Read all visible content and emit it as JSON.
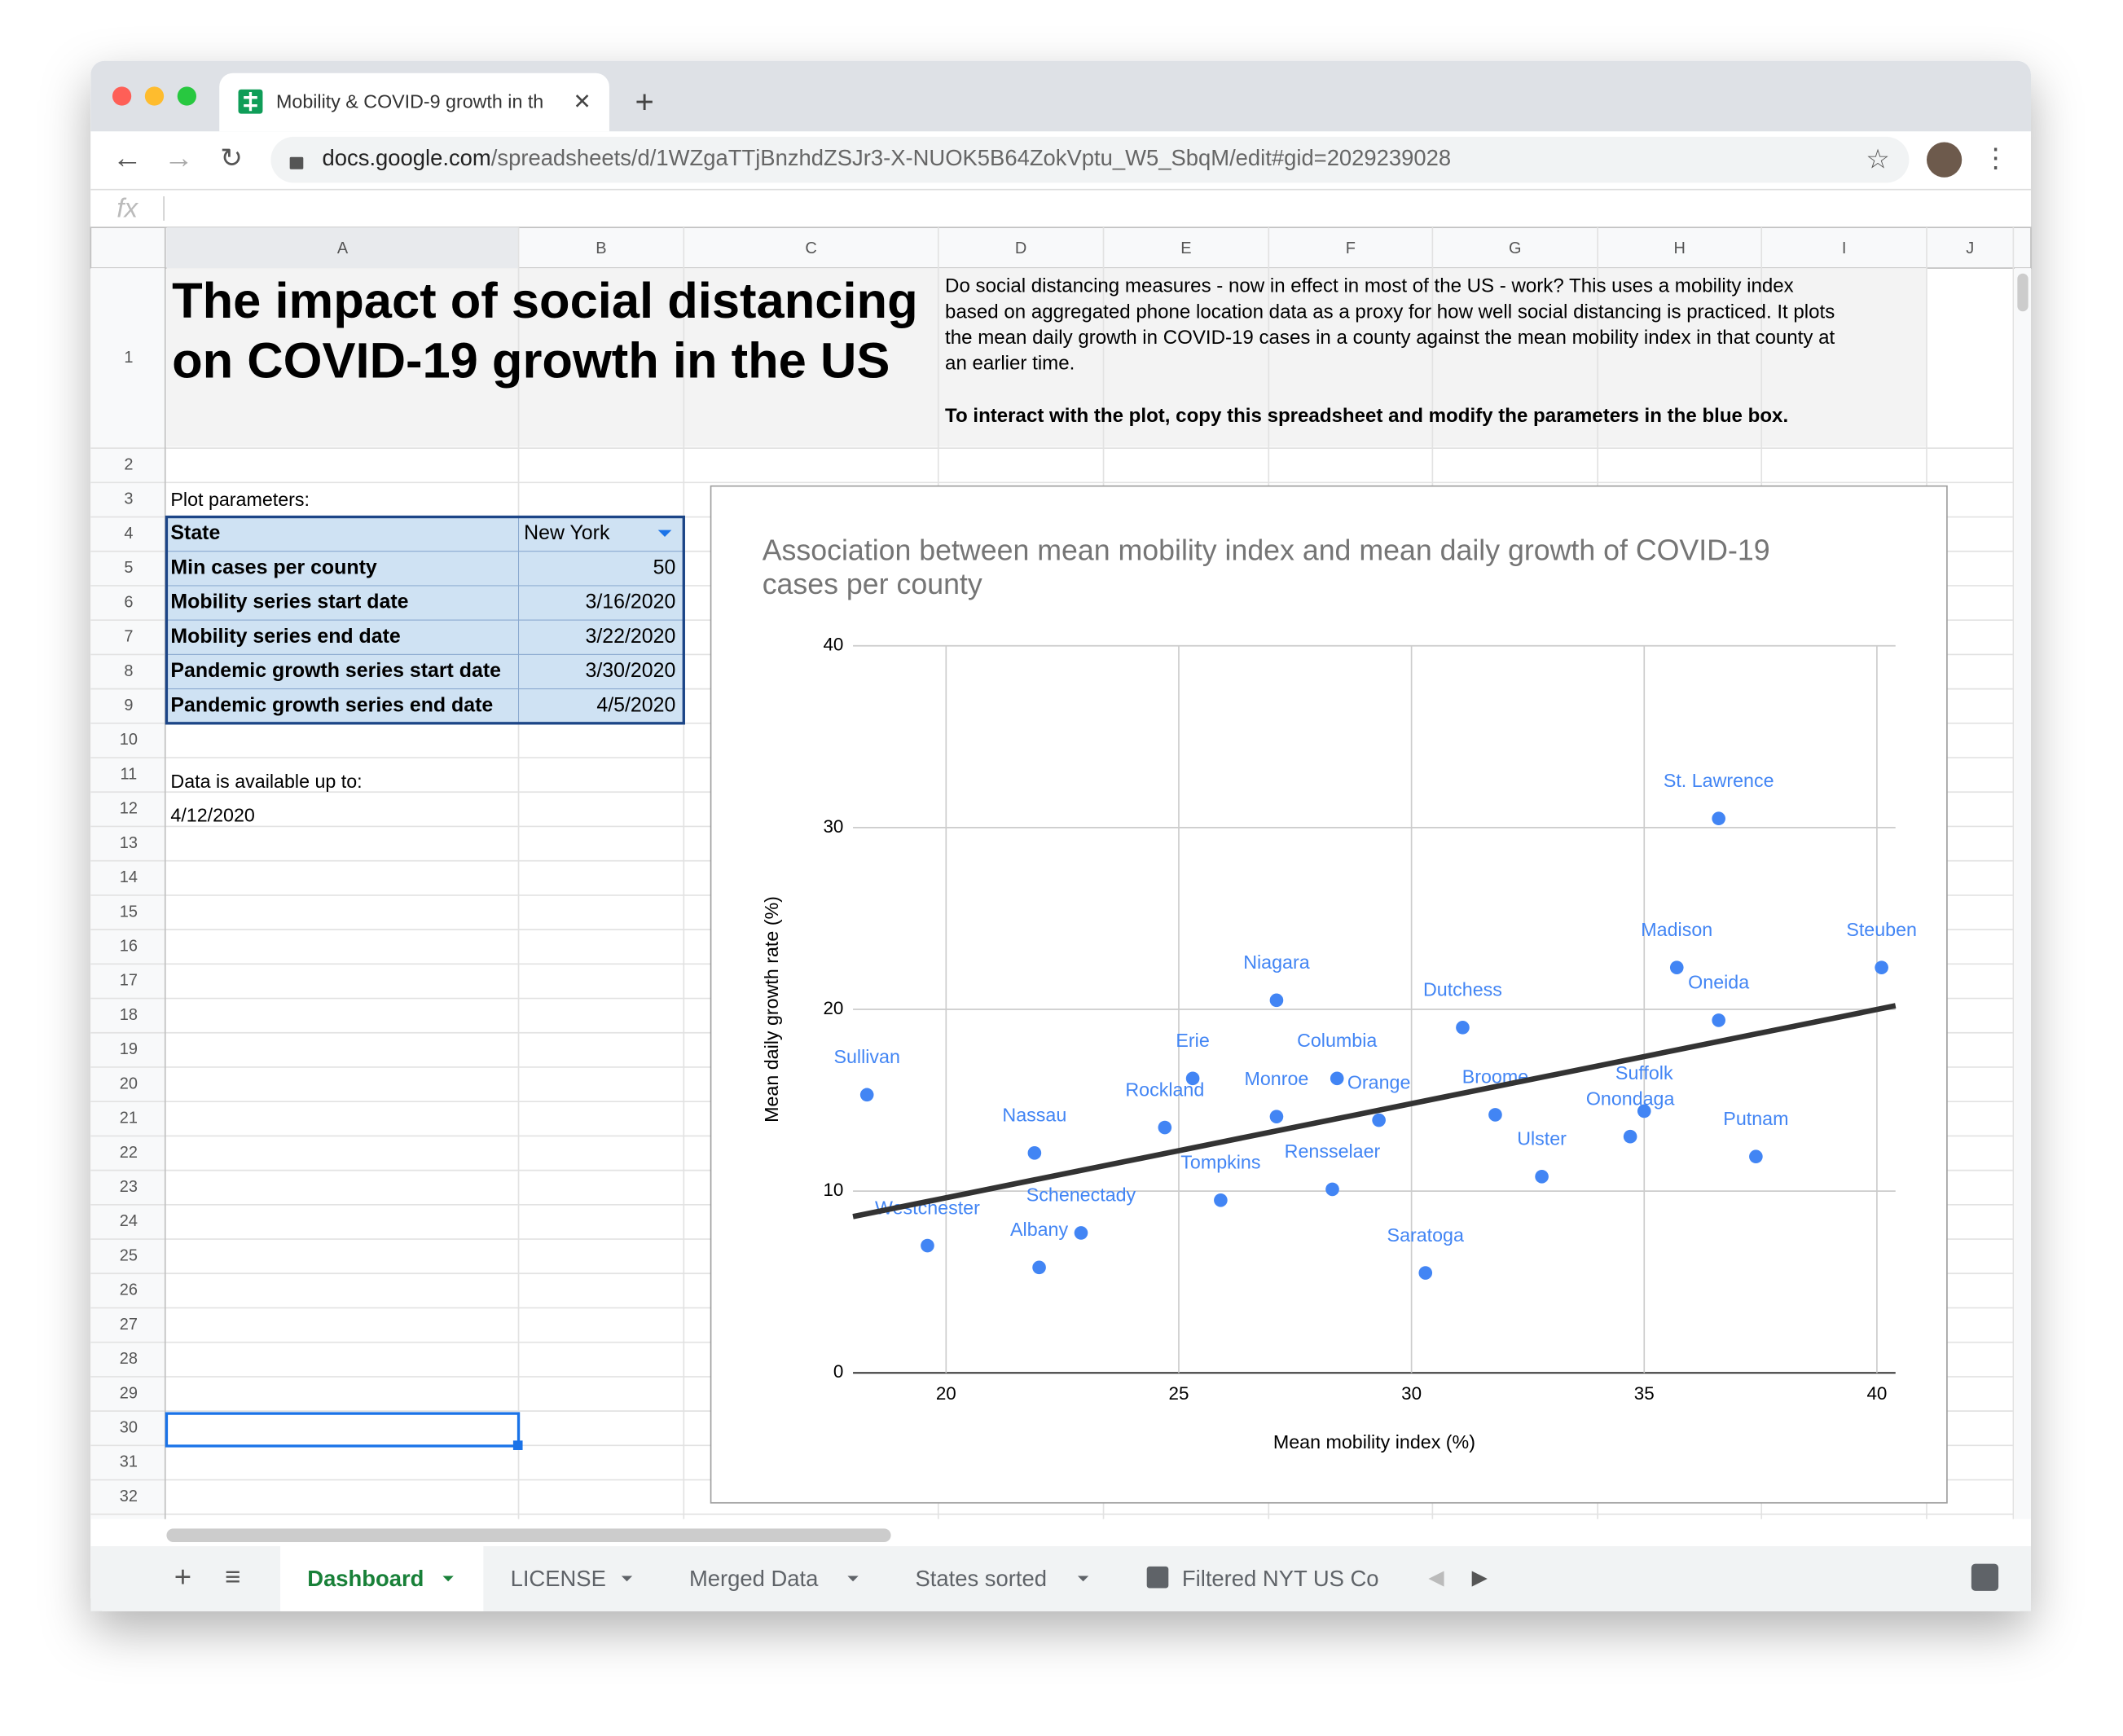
{
  "browser": {
    "tab_title": "Mobility & COVID-9 growth in th",
    "url_host": "docs.google.com",
    "url_path": "/spreadsheets/d/1WZgaTTjBnzhdZSJr3-X-NUOK5B64ZokVptu_W5_SbqM/edit#gid=2029239028"
  },
  "formula_bar": {
    "label": "fx"
  },
  "sheet": {
    "columns": [
      "A",
      "B",
      "C",
      "D",
      "E",
      "F",
      "G",
      "H",
      "I",
      "J"
    ],
    "rows": [
      "1",
      "2",
      "3",
      "4",
      "5",
      "6",
      "7",
      "8",
      "9",
      "10",
      "11",
      "12",
      "13",
      "14",
      "15",
      "16",
      "17",
      "18",
      "19",
      "20",
      "21",
      "22",
      "23",
      "24",
      "25",
      "26",
      "27",
      "28",
      "29",
      "30",
      "31",
      "32"
    ],
    "title": [
      "The impact of social distancing",
      "on COVID-19 growth in the US"
    ],
    "description": [
      "Do social distancing measures - now in effect in most of the US - work? This uses a mobility index",
      "based on aggregated phone location data as a proxy for how well social distancing is practiced. It plots",
      "the mean daily growth in COVID-19 cases in a county against the mean mobility index in that county at",
      "an earlier time."
    ],
    "instruction": "To interact with the plot, copy this spreadsheet and modify the parameters in the blue box.",
    "params_label": "Plot parameters:",
    "params": [
      [
        "State",
        "New York"
      ],
      [
        "Min cases per county",
        "50"
      ],
      [
        "Mobility series start date",
        "3/16/2020"
      ],
      [
        "Mobility series end date",
        "3/22/2020"
      ],
      [
        "Pandemic growth series start date",
        "3/30/2020"
      ],
      [
        "Pandemic growth series end date",
        "4/5/2020"
      ]
    ],
    "available_label": "Data is available up to:",
    "available_date": "4/12/2020"
  },
  "sheet_tabs": [
    "Dashboard",
    "LICENSE",
    "Merged Data",
    "States sorted",
    "Filtered NYT US Co"
  ],
  "chart_data": {
    "type": "scatter",
    "title": [
      "Association between mean mobility index and mean daily growth of COVID-19",
      "cases per county"
    ],
    "x_label": "Mean mobility index (%)",
    "y_label": "Mean daily growth rate (%)",
    "xlim": [
      18,
      40.4
    ],
    "ylim": [
      0,
      40
    ],
    "xticks": [
      20,
      25,
      30,
      35,
      40
    ],
    "yticks": [
      0,
      10,
      20,
      30,
      40
    ],
    "grid": true,
    "series": [
      {
        "color": "#4285f4",
        "labels": [
          "St. Lawrence",
          "Madison",
          "Steuben",
          "Oneida",
          "Niagara",
          "Dutchess",
          "Sullivan",
          "Erie",
          "Columbia",
          "Rockland",
          "Monroe",
          "Orange",
          "Broome",
          "Suffolk",
          "Onondaga",
          "Nassau",
          "Putnam",
          "Ulster",
          "Tompkins",
          "Rensselaer",
          "Westchester",
          "Schenectady",
          "Albany",
          "Saratoga"
        ],
        "x": [
          36.6,
          35.7,
          40.1,
          36.6,
          27.1,
          31.1,
          18.3,
          25.3,
          28.4,
          24.7,
          27.1,
          29.3,
          31.8,
          35.0,
          34.7,
          21.9,
          37.4,
          32.8,
          25.9,
          28.3,
          19.6,
          22.9,
          22.0,
          30.3
        ],
        "values": [
          30.5,
          22.3,
          22.3,
          19.4,
          20.5,
          19.0,
          15.3,
          16.2,
          16.2,
          13.5,
          14.1,
          13.9,
          14.2,
          14.4,
          13.0,
          12.1,
          11.9,
          10.8,
          9.5,
          10.1,
          7.0,
          7.7,
          5.8,
          5.5
        ]
      }
    ],
    "trendline": {
      "color": "#333333",
      "x": [
        18,
        40.4
      ],
      "values": [
        8.6,
        20.2
      ]
    }
  }
}
